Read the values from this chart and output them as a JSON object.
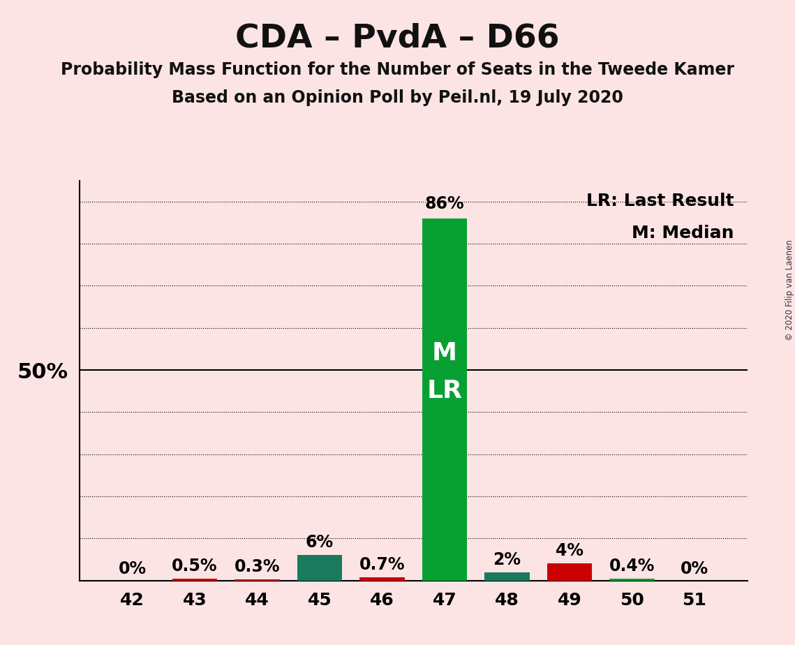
{
  "title": "CDA – PvdA – D66",
  "subtitle1": "Probability Mass Function for the Number of Seats in the Tweede Kamer",
  "subtitle2": "Based on an Opinion Poll by Peil.nl, 19 July 2020",
  "copyright": "© 2020 Filip van Laenen",
  "legend_lr": "LR: Last Result",
  "legend_m": "M: Median",
  "background_color": "#fce4e4",
  "categories": [
    42,
    43,
    44,
    45,
    46,
    47,
    48,
    49,
    50,
    51
  ],
  "values": [
    0.0,
    0.5,
    0.3,
    6.0,
    0.7,
    86.0,
    2.0,
    4.0,
    0.4,
    0.0
  ],
  "bar_colors": [
    "#cc0000",
    "#cc0000",
    "#cc0000",
    "#1a7a5e",
    "#cc0000",
    "#09a033",
    "#1a7a5e",
    "#cc0000",
    "#09a033",
    "#09a033"
  ],
  "bar_labels": [
    "0%",
    "0.5%",
    "0.3%",
    "6%",
    "0.7%",
    "86%",
    "2%",
    "4%",
    "0.4%",
    "0%"
  ],
  "median_seat": 47,
  "lr_seat": 47,
  "median_label": "M",
  "lr_label": "LR",
  "ymax": 95,
  "ytick_50_label": "50%",
  "grid_values": [
    10,
    20,
    30,
    40,
    50,
    60,
    70,
    80,
    90
  ],
  "title_fontsize": 34,
  "subtitle_fontsize": 17,
  "label_fontsize": 17,
  "tick_fontsize": 18,
  "legend_fontsize": 18,
  "bar_label_fontsize": 17,
  "bar_width": 0.72,
  "ml_fontsize": 26
}
